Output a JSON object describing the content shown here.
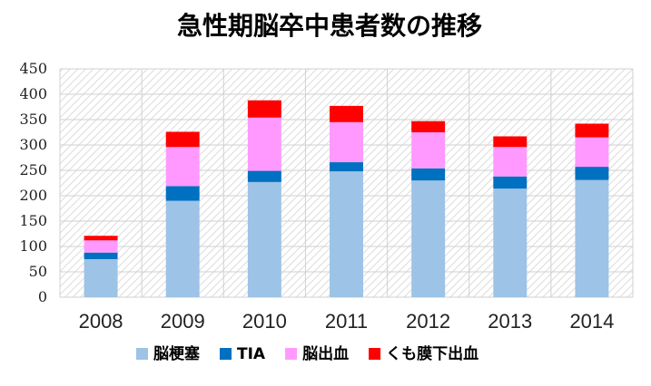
{
  "chart_data": {
    "type": "bar",
    "stacked": true,
    "title": "急性期脳卒中患者数の推移",
    "xlabel": "",
    "ylabel": "",
    "categories": [
      "2008",
      "2009",
      "2010",
      "2011",
      "2012",
      "2013",
      "2014"
    ],
    "ylim": [
      0,
      450
    ],
    "yticks": [
      0,
      50,
      100,
      150,
      200,
      250,
      300,
      350,
      400,
      450
    ],
    "grid": true,
    "legend_position": "bottom",
    "series": [
      {
        "name": "脳梗塞",
        "color": "#9dc3e6",
        "values": [
          75,
          190,
          227,
          248,
          230,
          214,
          231
        ]
      },
      {
        "name": "TIA",
        "color": "#0070c0",
        "values": [
          13,
          29,
          22,
          18,
          24,
          24,
          26
        ]
      },
      {
        "name": "脳出血",
        "color": "#ff99ff",
        "values": [
          24,
          77,
          105,
          79,
          71,
          58,
          58
        ]
      },
      {
        "name": "くも膜下出血",
        "color": "#ff0000",
        "values": [
          9,
          30,
          34,
          32,
          22,
          21,
          27
        ]
      }
    ]
  }
}
